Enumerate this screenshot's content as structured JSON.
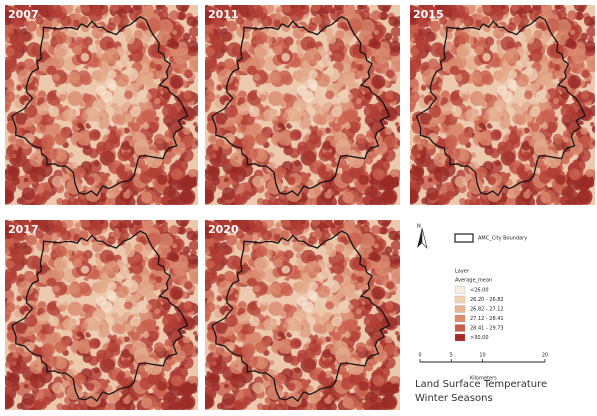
{
  "panels": [
    {
      "year": "2007"
    },
    {
      "year": "2011"
    },
    {
      "year": "2015"
    },
    {
      "year": "2017"
    },
    {
      "year": "2020"
    }
  ],
  "legend": {
    "boundary_label": "AMC_City Boundary",
    "layer_title": "Layer",
    "field": "Average_mean",
    "classes": [
      {
        "label": "<26.00",
        "color": "#fbeee0"
      },
      {
        "label": "26.20 - 26.82",
        "color": "#f3d2b4"
      },
      {
        "label": "26.82 - 27.12",
        "color": "#eab28e"
      },
      {
        "label": "27.12 - 28.41",
        "color": "#de8a6b"
      },
      {
        "label": "28.41 - 29.73",
        "color": "#c95a48"
      },
      {
        "label": ">30.00",
        "color": "#a82a26"
      }
    ]
  },
  "north": "N",
  "scale": {
    "ticks": [
      0,
      5,
      10,
      20
    ],
    "unit": "Kilometers"
  },
  "title": [
    "Land Surface Temperature",
    "Winter Seasons"
  ]
}
